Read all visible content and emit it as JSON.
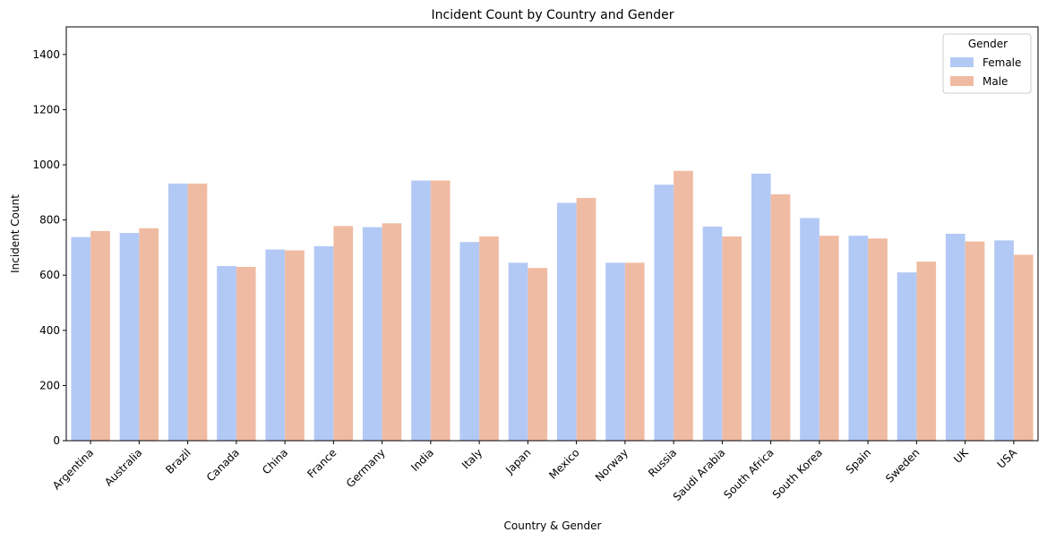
{
  "chart_data": {
    "type": "bar",
    "title": "Incident Count by Country and Gender",
    "xlabel": "Country & Gender",
    "ylabel": "Incident Count",
    "ylim": [
      0,
      1500
    ],
    "yticks": [
      0,
      200,
      400,
      600,
      800,
      1000,
      1200,
      1400
    ],
    "grid": false,
    "legend": {
      "title": "Gender",
      "placement": "top-right"
    },
    "categories": [
      "Argentina",
      "Australia",
      "Brazil",
      "Canada",
      "China",
      "France",
      "Germany",
      "India",
      "Italy",
      "Japan",
      "Mexico",
      "Norway",
      "Russia",
      "Saudi Arabia",
      "South Africa",
      "South Korea",
      "Spain",
      "Sweden",
      "UK",
      "USA"
    ],
    "series": [
      {
        "name": "Female",
        "color": "#b3c9f5",
        "values": [
          738,
          753,
          932,
          633,
          693,
          705,
          774,
          943,
          720,
          645,
          862,
          645,
          928,
          776,
          968,
          807,
          743,
          610,
          750,
          726
        ]
      },
      {
        "name": "Male",
        "color": "#f0bba3",
        "values": [
          760,
          770,
          932,
          630,
          690,
          778,
          788,
          943,
          740,
          626,
          880,
          645,
          978,
          740,
          893,
          743,
          733,
          649,
          722,
          674
        ]
      }
    ]
  }
}
